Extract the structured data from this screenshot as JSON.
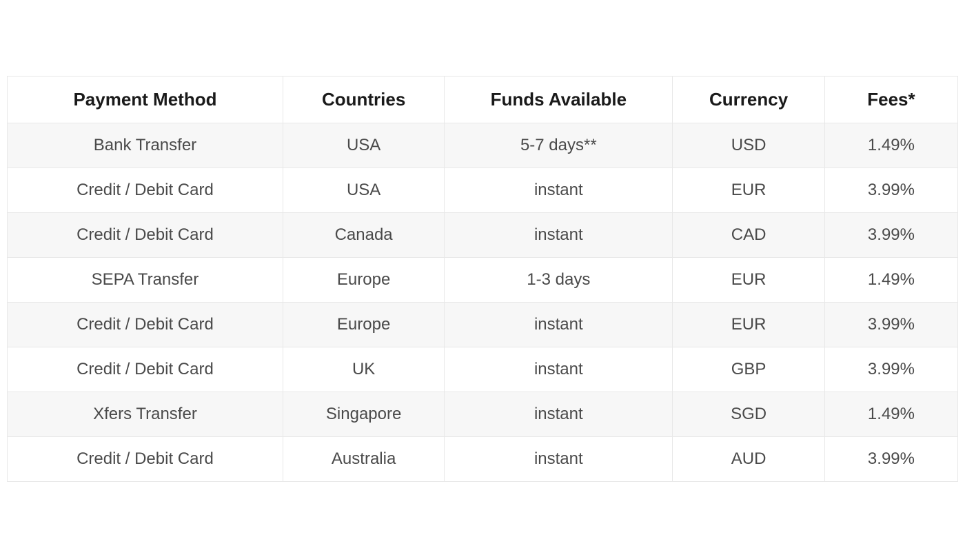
{
  "table": {
    "type": "table",
    "columns": [
      {
        "key": "payment_method",
        "label": "Payment Method",
        "width_pct": 29
      },
      {
        "key": "countries",
        "label": "Countries",
        "width_pct": 17
      },
      {
        "key": "funds_available",
        "label": "Funds Available",
        "width_pct": 24
      },
      {
        "key": "currency",
        "label": "Currency",
        "width_pct": 16
      },
      {
        "key": "fees",
        "label": "Fees*",
        "width_pct": 14
      }
    ],
    "rows": [
      {
        "payment_method": "Bank Transfer",
        "countries": "USA",
        "funds_available": "5-7 days**",
        "currency": "USD",
        "fees": "1.49%"
      },
      {
        "payment_method": "Credit / Debit Card",
        "countries": "USA",
        "funds_available": "instant",
        "currency": "EUR",
        "fees": "3.99%"
      },
      {
        "payment_method": "Credit / Debit Card",
        "countries": "Canada",
        "funds_available": "instant",
        "currency": "CAD",
        "fees": "3.99%"
      },
      {
        "payment_method": "SEPA Transfer",
        "countries": "Europe",
        "funds_available": "1-3 days",
        "currency": "EUR",
        "fees": "1.49%"
      },
      {
        "payment_method": "Credit / Debit Card",
        "countries": "Europe",
        "funds_available": "instant",
        "currency": "EUR",
        "fees": "3.99%"
      },
      {
        "payment_method": "Credit / Debit Card",
        "countries": "UK",
        "funds_available": "instant",
        "currency": "GBP",
        "fees": "3.99%"
      },
      {
        "payment_method": "Xfers Transfer",
        "countries": "Singapore",
        "funds_available": "instant",
        "currency": "SGD",
        "fees": "1.49%"
      },
      {
        "payment_method": "Credit / Debit Card",
        "countries": "Australia",
        "funds_available": "instant",
        "currency": "AUD",
        "fees": "3.99%"
      }
    ],
    "header_fontsize": 26,
    "header_fontweight": 700,
    "header_color": "#1a1a1a",
    "cell_fontsize": 24,
    "cell_fontweight": 400,
    "cell_color": "#4a4a4a",
    "border_color": "#e8e8e8",
    "row_bg_odd": "#f7f7f7",
    "row_bg_even": "#ffffff",
    "text_align": "center"
  }
}
